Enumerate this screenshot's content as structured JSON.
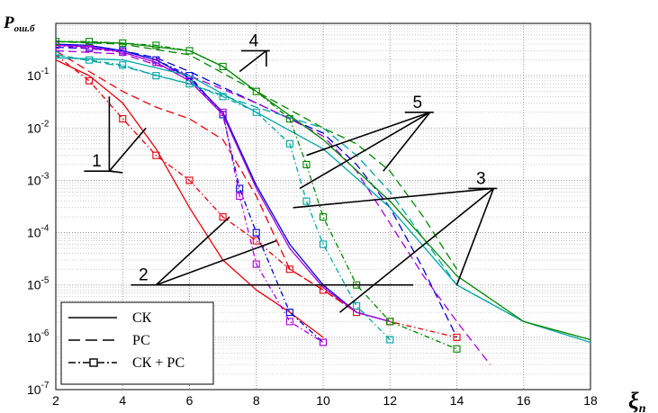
{
  "chart_data": {
    "type": "line",
    "ylabel_main": "P",
    "ylabel_sub": "ош.б",
    "xlabel_main": "ξ",
    "xlabel_sub": "n",
    "xlim": [
      2,
      18
    ],
    "ylim": [
      1e-07,
      1
    ],
    "yscale": "log",
    "x_ticks": [
      2,
      4,
      6,
      8,
      10,
      12,
      14,
      16,
      18
    ],
    "y_tick_exponents": [
      -1,
      -2,
      -3,
      -4,
      -5,
      -6,
      -7
    ],
    "grid": true,
    "legend": {
      "position": "bottom-left",
      "entries": [
        {
          "label": "СК",
          "style": "solid"
        },
        {
          "label": "РС",
          "style": "dashed"
        },
        {
          "label": "СК + РС",
          "style": "dashdot-square"
        }
      ]
    },
    "annotations": [
      {
        "text": "1",
        "x": 3.6,
        "y": 0.0015,
        "targets": [
          [
            4.7,
            0.01
          ],
          [
            3.6,
            0.04
          ],
          [
            4.0,
            0.0014
          ]
        ]
      },
      {
        "text": "2",
        "x": 5.0,
        "y": 1e-05,
        "targets": [
          [
            7.2,
            0.0002
          ],
          [
            8.6,
            7e-05
          ],
          [
            12.7,
            1e-05
          ]
        ]
      },
      {
        "text": "3",
        "x": 15.1,
        "y": 0.0007,
        "targets": [
          [
            9.1,
            0.0003
          ],
          [
            14.0,
            1e-05
          ],
          [
            10.5,
            3e-06
          ]
        ]
      },
      {
        "text": "4",
        "x": 8.3,
        "y": 0.3,
        "targets": [
          [
            7.5,
            0.12
          ],
          [
            8.3,
            0.15
          ]
        ]
      },
      {
        "text": "5",
        "x": 13.2,
        "y": 0.02,
        "targets": [
          [
            9.5,
            0.003
          ],
          [
            9.3,
            0.0007
          ],
          [
            11.8,
            0.0015
          ]
        ]
      }
    ],
    "series": [
      {
        "style": "solid",
        "color": "#e8000b",
        "x": [
          2,
          3,
          4,
          5,
          6,
          7,
          8,
          9,
          10
        ],
        "y": [
          0.2,
          0.1,
          0.03,
          0.004,
          0.0003,
          3e-05,
          8e-06,
          3e-06,
          1e-06
        ]
      },
      {
        "style": "dashed",
        "color": "#e8000b",
        "x": [
          2,
          3,
          4,
          5,
          6,
          7,
          8,
          9,
          10,
          11
        ],
        "y": [
          0.3,
          0.12,
          0.05,
          0.025,
          0.015,
          0.006,
          0.0005,
          2e-05,
          8e-06,
          3e-06
        ]
      },
      {
        "style": "dashdot-square",
        "color": "#e8000b",
        "x": [
          2,
          3,
          4,
          5,
          6,
          7,
          8,
          9,
          10,
          11,
          12,
          14
        ],
        "y": [
          0.25,
          0.08,
          0.015,
          0.003,
          0.001,
          0.0002,
          7e-05,
          2e-05,
          8e-06,
          3e-06,
          2e-06,
          1e-06
        ]
      },
      {
        "style": "solid",
        "color": "#0000dd",
        "x": [
          2,
          3,
          4,
          5,
          6,
          7,
          8,
          9,
          10,
          11,
          12
        ],
        "y": [
          0.4,
          0.38,
          0.3,
          0.2,
          0.09,
          0.02,
          0.0008,
          6e-05,
          1e-05,
          3e-06,
          2e-06
        ]
      },
      {
        "style": "dashed",
        "color": "#0000dd",
        "x": [
          2,
          3,
          4,
          5,
          6,
          7,
          8,
          9,
          10,
          11,
          12,
          13,
          14
        ],
        "y": [
          0.35,
          0.33,
          0.3,
          0.22,
          0.12,
          0.06,
          0.03,
          0.015,
          0.008,
          0.002,
          0.0003,
          2e-05,
          1e-06
        ]
      },
      {
        "style": "dashdot-square",
        "color": "#0000dd",
        "x": [
          2,
          3,
          4,
          5,
          6,
          7,
          7.5,
          8,
          9,
          10
        ],
        "y": [
          0.4,
          0.35,
          0.3,
          0.2,
          0.1,
          0.018,
          0.0007,
          0.0001,
          3e-06,
          8e-07
        ]
      },
      {
        "style": "solid",
        "color": "#aa00dd",
        "x": [
          2,
          3,
          4,
          5,
          6,
          7,
          8,
          9,
          10,
          11,
          12
        ],
        "y": [
          0.38,
          0.36,
          0.28,
          0.18,
          0.08,
          0.018,
          0.0007,
          5e-05,
          9e-06,
          3e-06,
          2e-06
        ]
      },
      {
        "style": "dashed",
        "color": "#aa00dd",
        "x": [
          2,
          4,
          6,
          8,
          9,
          10,
          11,
          12,
          13,
          14,
          15
        ],
        "y": [
          0.3,
          0.26,
          0.1,
          0.03,
          0.015,
          0.007,
          0.0015,
          0.00015,
          1.5e-05,
          2e-06,
          3e-07
        ]
      },
      {
        "style": "dashdot-square",
        "color": "#aa00dd",
        "x": [
          2,
          3,
          4,
          5,
          6,
          7,
          7.5,
          8,
          9,
          10
        ],
        "y": [
          0.38,
          0.33,
          0.28,
          0.18,
          0.08,
          0.02,
          0.0005,
          2.5e-05,
          2e-06,
          8e-07
        ]
      },
      {
        "style": "solid",
        "color": "#00a6a6",
        "x": [
          2,
          4,
          6,
          8,
          10,
          12,
          14,
          16,
          18
        ],
        "y": [
          0.22,
          0.2,
          0.1,
          0.02,
          0.004,
          0.0003,
          1e-05,
          2e-06,
          8e-07
        ]
      },
      {
        "style": "dashed",
        "color": "#00a6a6",
        "x": [
          2,
          4,
          6,
          8,
          10,
          11,
          12,
          14,
          16
        ],
        "y": [
          0.25,
          0.15,
          0.07,
          0.025,
          0.01,
          0.003,
          0.0006,
          1e-05,
          2e-06
        ]
      },
      {
        "style": "dashdot-square",
        "color": "#00a6a6",
        "x": [
          2,
          3,
          4,
          5,
          6,
          7,
          8,
          9,
          9.5,
          10,
          11,
          12
        ],
        "y": [
          0.25,
          0.2,
          0.16,
          0.1,
          0.07,
          0.04,
          0.02,
          0.005,
          0.0004,
          6e-05,
          4e-06,
          9e-07
        ]
      },
      {
        "style": "solid",
        "color": "#008800",
        "x": [
          2,
          4,
          6,
          7,
          8,
          10,
          12,
          14,
          16,
          18
        ],
        "y": [
          0.45,
          0.42,
          0.3,
          0.15,
          0.05,
          0.006,
          0.0004,
          1.5e-05,
          2e-06,
          9e-07
        ]
      },
      {
        "style": "dashed",
        "color": "#008800",
        "x": [
          2,
          4,
          6,
          8,
          10,
          11,
          12,
          13,
          14
        ],
        "y": [
          0.45,
          0.4,
          0.25,
          0.05,
          0.01,
          0.005,
          0.0015,
          0.0002,
          2e-05
        ]
      },
      {
        "style": "dashdot-square",
        "color": "#008800",
        "x": [
          2,
          3,
          4,
          5,
          6,
          7,
          8,
          9,
          9.5,
          10,
          11,
          12,
          14
        ],
        "y": [
          0.45,
          0.45,
          0.42,
          0.38,
          0.3,
          0.15,
          0.05,
          0.015,
          0.002,
          0.0002,
          1e-05,
          2e-06,
          6e-07
        ]
      }
    ]
  }
}
